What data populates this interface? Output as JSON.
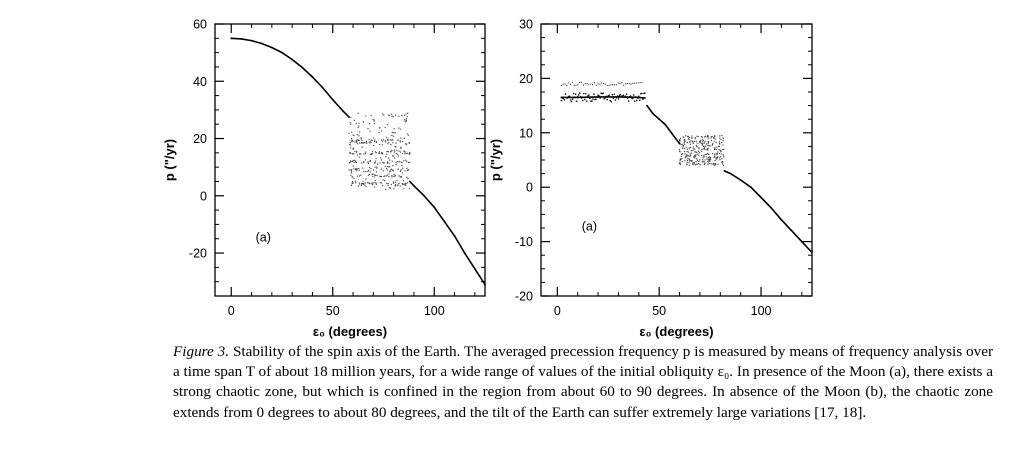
{
  "chart_data": [
    {
      "type": "scatter",
      "panel_label": "(a)",
      "xlabel": "ε₀ (degrees)",
      "ylabel": "p (\"/yr)",
      "xlim": [
        -8,
        125
      ],
      "ylim": [
        -35,
        60
      ],
      "xticks": [
        0,
        50,
        100
      ],
      "yticks": [
        60,
        40,
        20,
        0,
        -20
      ],
      "xtick_labels": [
        "0",
        "50",
        "100"
      ],
      "ytick_labels": [
        "60",
        "40",
        "20",
        "0",
        "-20"
      ],
      "series": [
        {
          "values": [
            [
              0,
              55
            ],
            [
              5,
              54.8
            ],
            [
              10,
              54.2
            ],
            [
              15,
              53.2
            ],
            [
              20,
              51.8
            ],
            [
              25,
              50
            ],
            [
              30,
              47.6
            ],
            [
              35,
              44.8
            ],
            [
              40,
              41.5
            ],
            [
              45,
              37.8
            ],
            [
              50,
              33.6
            ],
            [
              55,
              29.6
            ],
            [
              58,
              27.5
            ]
          ]
        },
        {
          "values": [
            [
              88,
              5
            ],
            [
              90,
              3.5
            ],
            [
              95,
              0
            ],
            [
              100,
              -4
            ],
            [
              105,
              -9
            ],
            [
              110,
              -14
            ],
            [
              115,
              -20
            ],
            [
              120,
              -25.5
            ],
            [
              125,
              -31
            ]
          ]
        },
        {
          "chaotic_range_x": [
            58,
            88
          ],
          "chaotic_range_y": [
            2,
            29
          ],
          "bands_y": [
            19,
            15,
            12,
            9,
            7,
            4
          ]
        }
      ]
    },
    {
      "type": "scatter",
      "panel_label": "(a)",
      "xlabel": "ε₀ (degrees)",
      "ylabel": "p (\"/yr)",
      "xlim": [
        -8,
        125
      ],
      "ylim": [
        -20,
        30
      ],
      "xticks": [
        0,
        50,
        100
      ],
      "yticks": [
        30,
        20,
        10,
        0,
        -10,
        -20
      ],
      "xtick_labels": [
        "0",
        "50",
        "100"
      ],
      "ytick_labels": [
        "30",
        "20",
        "10",
        "0",
        "-10",
        "-20"
      ],
      "series": [
        {
          "values": [
            [
              2,
              16.5
            ],
            [
              10,
              16.5
            ],
            [
              20,
              16.6
            ],
            [
              30,
              16.6
            ],
            [
              40,
              16.5
            ],
            [
              43,
              16.4
            ]
          ]
        },
        {
          "upper_band_y": 19,
          "upper_band_x": [
            2,
            42
          ]
        },
        {
          "values": [
            [
              44,
              15
            ],
            [
              47,
              13.5
            ],
            [
              50,
              12.5
            ],
            [
              53,
              11.5
            ],
            [
              56,
              10
            ],
            [
              60,
              8
            ]
          ]
        },
        {
          "chaotic_range_x": [
            60,
            82
          ],
          "chaotic_range_y": [
            4,
            9.5
          ]
        },
        {
          "values": [
            [
              82,
              3
            ],
            [
              85,
              2.5
            ],
            [
              90,
              1.3
            ],
            [
              95,
              0
            ],
            [
              100,
              -1.9
            ],
            [
              105,
              -3.8
            ],
            [
              110,
              -6
            ],
            [
              115,
              -8
            ],
            [
              120,
              -10
            ],
            [
              125,
              -12
            ]
          ]
        }
      ]
    }
  ],
  "caption": {
    "figure_label": "Figure 3.",
    "text": "Stability of the spin axis of the Earth. The averaged precession frequency p is measured by means of frequency analysis over a time span T of about 18 million years, for a wide range of values of the initial obliquity ε₀. In presence of the Moon (a), there exists a strong chaotic zone, but which is confined in the region from about 60 to 90 degrees. In absence of the Moon (b), the chaotic zone extends from 0 degrees to about 80 degrees, and the tilt of the Earth can suffer extremely large variations [17, 18]."
  }
}
